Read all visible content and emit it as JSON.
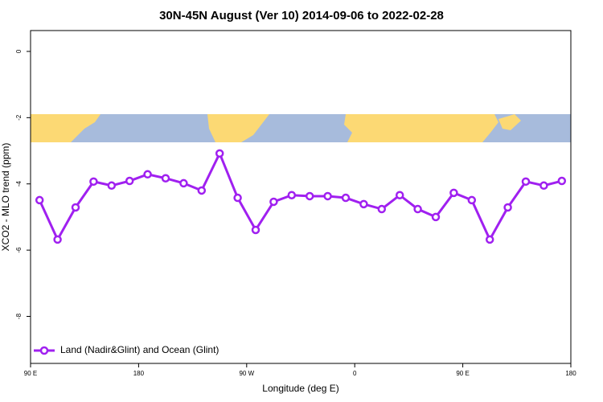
{
  "chart_data": {
    "type": "line",
    "title": "30N-45N August (Ver 10)   2014-09-06 to 2022-02-28",
    "x_label": "Longitude (deg E)",
    "y_label": "XCO2 - MLO trend (ppm)",
    "x": [
      97.5,
      112.5,
      127.5,
      142.5,
      157.5,
      172.5,
      187.5,
      202.5,
      217.5,
      232.5,
      247.5,
      262.5,
      277.5,
      292.5,
      307.5,
      322.5,
      337.5,
      352.5,
      367.5,
      382.5,
      397.5,
      412.5,
      427.5,
      442.5,
      457.5,
      472.5,
      487.5,
      502.5,
      517.5,
      532.5
    ],
    "series": [
      {
        "name": "Land (Nadir&Glint) and Ocean (Glint)",
        "color": "#a020f0",
        "values": [
          -4.49,
          -5.68,
          -4.71,
          -3.93,
          -4.05,
          -3.91,
          -3.71,
          -3.83,
          -3.98,
          -4.2,
          -3.08,
          -4.42,
          -5.39,
          -4.54,
          -4.34,
          -4.37,
          -4.37,
          -4.42,
          -4.61,
          -4.76,
          -4.34,
          -4.76,
          -5.0,
          -4.27,
          -4.49,
          -5.68,
          -4.71,
          -3.93,
          -4.05,
          -3.91
        ]
      }
    ],
    "xlim": [
      90,
      540
    ],
    "xticks": [
      {
        "value": 90,
        "label": "90 E"
      },
      180,
      {
        "value": 270,
        "label": "90 W"
      },
      {
        "value": 360,
        "label": "0"
      },
      {
        "value": 450,
        "label": "90 E"
      },
      {
        "value": 540,
        "label": "180"
      }
    ],
    "ylim": [
      -9.42,
      0.63
    ],
    "yticks": [
      0,
      -2,
      -4,
      -6,
      -8
    ],
    "legend": "bottom-left"
  }
}
